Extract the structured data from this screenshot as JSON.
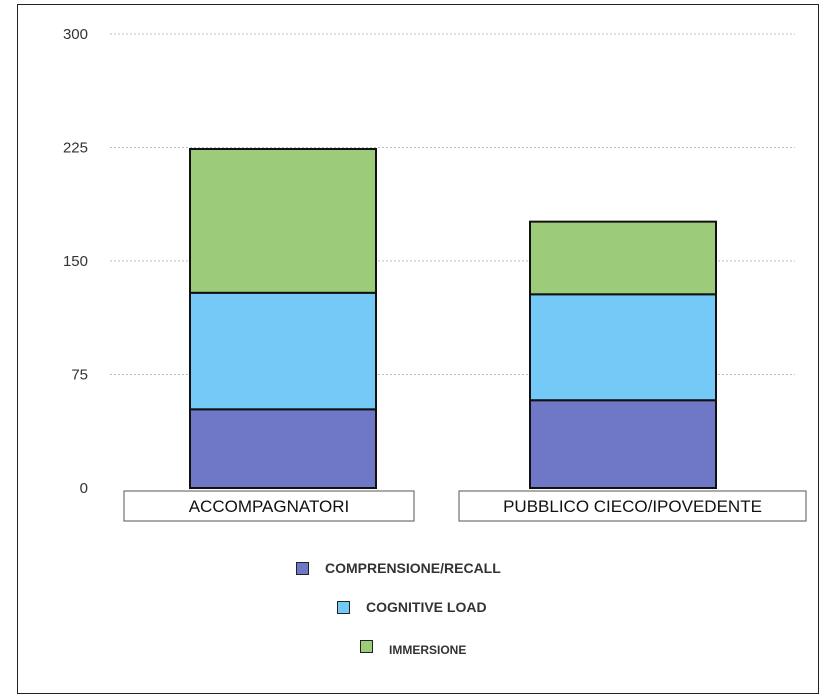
{
  "chart_data": {
    "type": "bar",
    "stacked": true,
    "title": "",
    "xlabel": "",
    "ylabel": "",
    "ylim": [
      0,
      300
    ],
    "yticks": [
      0,
      75,
      150,
      225,
      300
    ],
    "grid": true,
    "legend_position": "bottom",
    "categories": [
      "ACCOMPAGNATORI",
      "PUBBLICO CIECO/IPOVEDENTE"
    ],
    "series": [
      {
        "name": "COMPRENSIONE/RECALL",
        "values": [
          52,
          58
        ],
        "color": "#6f78c6"
      },
      {
        "name": "COGNITIVE LOAD",
        "values": [
          77,
          70
        ],
        "color": "#74c9f7"
      },
      {
        "name": "IMMERSIONE",
        "values": [
          95,
          48
        ],
        "color": "#9ccc79"
      }
    ]
  }
}
